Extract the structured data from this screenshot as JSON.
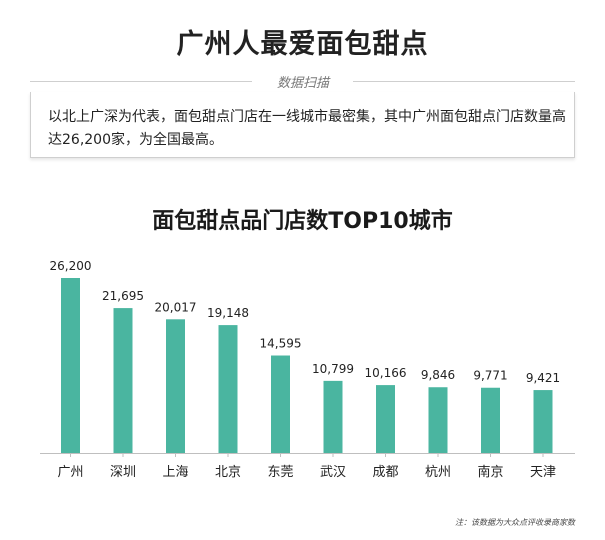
{
  "header": {
    "title": "广州人最爱面包甜点",
    "section_tag": "数据扫描",
    "summary": "以北上广深为代表，面包甜点门店在一线城市最密集，其中广州面包甜点门店数量高达26,200家，为全国最高。"
  },
  "colors": {
    "bar": "#4ab5a0",
    "axis": "#bfbfbf"
  },
  "chart_data": {
    "type": "bar",
    "title": "面包甜点品门店数TOP10城市",
    "categories": [
      "广州",
      "深圳",
      "上海",
      "北京",
      "东莞",
      "武汉",
      "成都",
      "杭州",
      "南京",
      "天津"
    ],
    "values": [
      26200,
      21695,
      20017,
      19148,
      14595,
      10799,
      10166,
      9846,
      9771,
      9421
    ],
    "value_labels": [
      "26,200",
      "21,695",
      "20,017",
      "19,148",
      "14,595",
      "10,799",
      "10,166",
      "9,846",
      "9,771",
      "9,421"
    ],
    "ylim": [
      0,
      26200
    ],
    "grid": false
  },
  "footnote": "注：该数据为大众点评收录商家数"
}
